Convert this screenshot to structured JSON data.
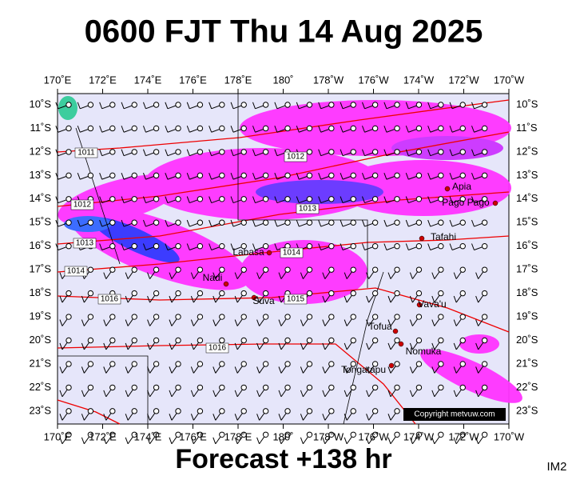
{
  "header": {
    "title": "0600 FJT Thu 14 Aug 2025"
  },
  "map": {
    "lon_labels": [
      "170˚E",
      "172˚E",
      "174˚E",
      "176˚E",
      "178˚E",
      "180˚",
      "178˚W",
      "176˚W",
      "174˚W",
      "172˚W",
      "170˚W"
    ],
    "lat_labels": [
      "10˚S",
      "11˚S",
      "12˚S",
      "13˚S",
      "14˚S",
      "15˚S",
      "16˚S",
      "17˚S",
      "18˚S",
      "19˚S",
      "20˚S",
      "21˚S",
      "22˚S",
      "23˚S"
    ],
    "places": [
      {
        "label": "Apia"
      },
      {
        "label": "Pago Pago"
      },
      {
        "label": "Tafahi"
      },
      {
        "label": "Labasa"
      },
      {
        "label": "Nadi"
      },
      {
        "label": "Suva"
      },
      {
        "label": "Vava'u"
      },
      {
        "label": "Tofua"
      },
      {
        "label": "Nomuka"
      },
      {
        "label": "Tongatapu"
      }
    ],
    "isobar_labels": [
      "1011",
      "1012",
      "1012",
      "1013",
      "1013",
      "1014",
      "1014",
      "1016",
      "1015",
      "1016"
    ],
    "copyright": "Copyright metvuw.com"
  },
  "footer": {
    "forecast": "Forecast +138 hr",
    "code": "IM2"
  }
}
